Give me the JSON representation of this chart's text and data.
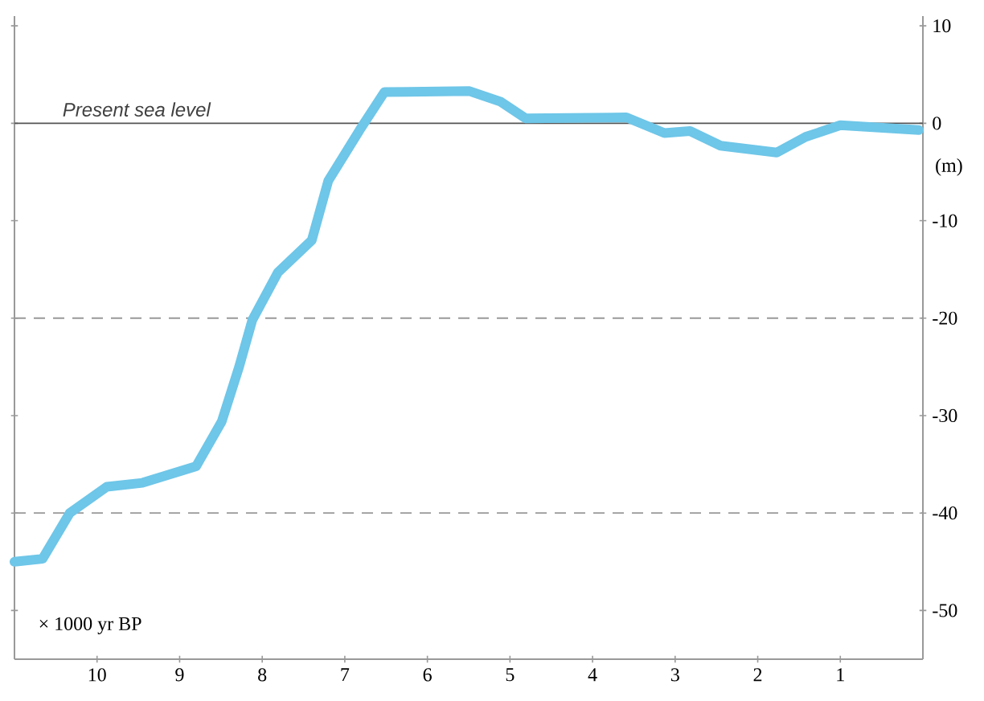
{
  "chart_data": {
    "type": "line",
    "xlabel": "× 1000 yr BP",
    "ylabel": "(m)",
    "xlim": [
      11,
      0
    ],
    "ylim": [
      -55,
      11
    ],
    "xticks": [
      10,
      9,
      8,
      7,
      6,
      5,
      4,
      3,
      2,
      1
    ],
    "yticks": [
      10,
      0,
      -10,
      -20,
      -30,
      -40,
      -50
    ],
    "series": [
      {
        "color": "#6ec6e8",
        "x": [
          11.0,
          10.66,
          10.33,
          9.88,
          9.45,
          8.8,
          8.49,
          8.28,
          8.12,
          7.81,
          7.4,
          7.2,
          6.82,
          6.52,
          5.49,
          5.11,
          4.81,
          3.59,
          3.13,
          2.82,
          2.45,
          1.77,
          1.42,
          1.0,
          0.05
        ],
        "values": [
          -45,
          -44.7,
          -40,
          -37.3,
          -36.9,
          -35.2,
          -30.6,
          -25,
          -20.2,
          -15.3,
          -12,
          -5.9,
          -0.7,
          3.2,
          3.3,
          2.2,
          0.5,
          0.6,
          -1.0,
          -0.8,
          -2.3,
          -3.0,
          -1.4,
          -0.2,
          -0.7
        ]
      }
    ],
    "ref_lines": [
      {
        "axis": "y",
        "value": 0,
        "label": "Present sea level",
        "color": "#555555",
        "line_style": "solid"
      },
      {
        "axis": "y",
        "value": -20,
        "color": "#999999",
        "line_style": "dashed"
      },
      {
        "axis": "y",
        "value": -40,
        "color": "#999999",
        "line_style": "dashed"
      }
    ],
    "grid": false,
    "marker": "none",
    "line_style": "solid"
  }
}
